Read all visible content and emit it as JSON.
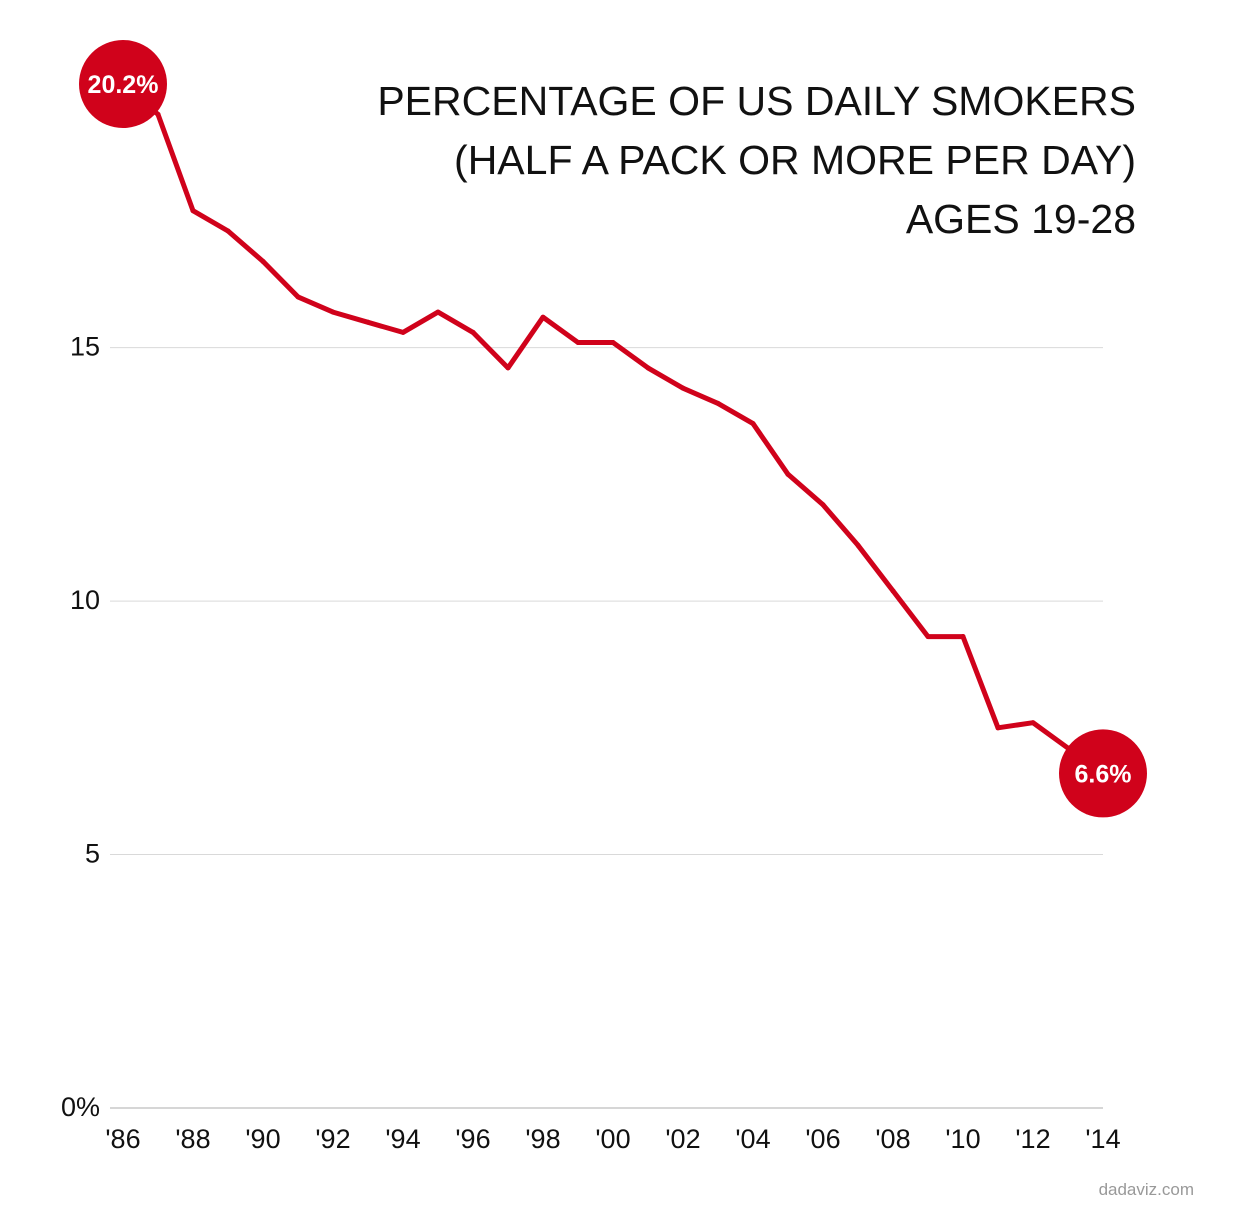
{
  "chart_data": {
    "type": "line",
    "title_lines": [
      "PERCENTAGE OF US DAILY SMOKERS",
      "(HALF A PACK OR MORE PER DAY)",
      "AGES 19-28"
    ],
    "x_tick_labels": [
      "'86",
      "'88",
      "'90",
      "'92",
      "'94",
      "'96",
      "'98",
      "'00",
      "'02",
      "'04",
      "'06",
      "'08",
      "'10",
      "'12",
      "'14"
    ],
    "x_tick_years": [
      1986,
      1988,
      1990,
      1992,
      1994,
      1996,
      1998,
      2000,
      2002,
      2004,
      2006,
      2008,
      2010,
      2012,
      2014
    ],
    "y_ticks": [
      {
        "value": 0,
        "label": "0%"
      },
      {
        "value": 5,
        "label": "5"
      },
      {
        "value": 10,
        "label": "10"
      },
      {
        "value": 15,
        "label": "15"
      }
    ],
    "xlim": [
      1986,
      2014
    ],
    "ylim": [
      0,
      20.2
    ],
    "grid": "horizontal",
    "series": [
      {
        "color": "#d0021b",
        "x": [
          1986,
          1987,
          1988,
          1989,
          1990,
          1991,
          1992,
          1993,
          1994,
          1995,
          1996,
          1997,
          1998,
          1999,
          2000,
          2001,
          2002,
          2003,
          2004,
          2005,
          2006,
          2007,
          2008,
          2009,
          2010,
          2011,
          2012,
          2013,
          2014
        ],
        "values": [
          20.2,
          19.6,
          17.7,
          17.3,
          16.7,
          16.0,
          15.7,
          15.5,
          15.3,
          15.7,
          15.3,
          14.6,
          15.6,
          15.1,
          15.1,
          14.6,
          14.2,
          13.9,
          13.5,
          12.5,
          11.9,
          11.1,
          10.2,
          9.3,
          9.3,
          7.5,
          7.6,
          7.1,
          6.6
        ]
      }
    ],
    "callouts": [
      {
        "x": 1986,
        "value": 20.2,
        "label": "20.2%"
      },
      {
        "x": 2014,
        "value": 6.6,
        "label": "6.6%"
      }
    ]
  },
  "footer": {
    "source_credit": "dadaviz.com"
  }
}
